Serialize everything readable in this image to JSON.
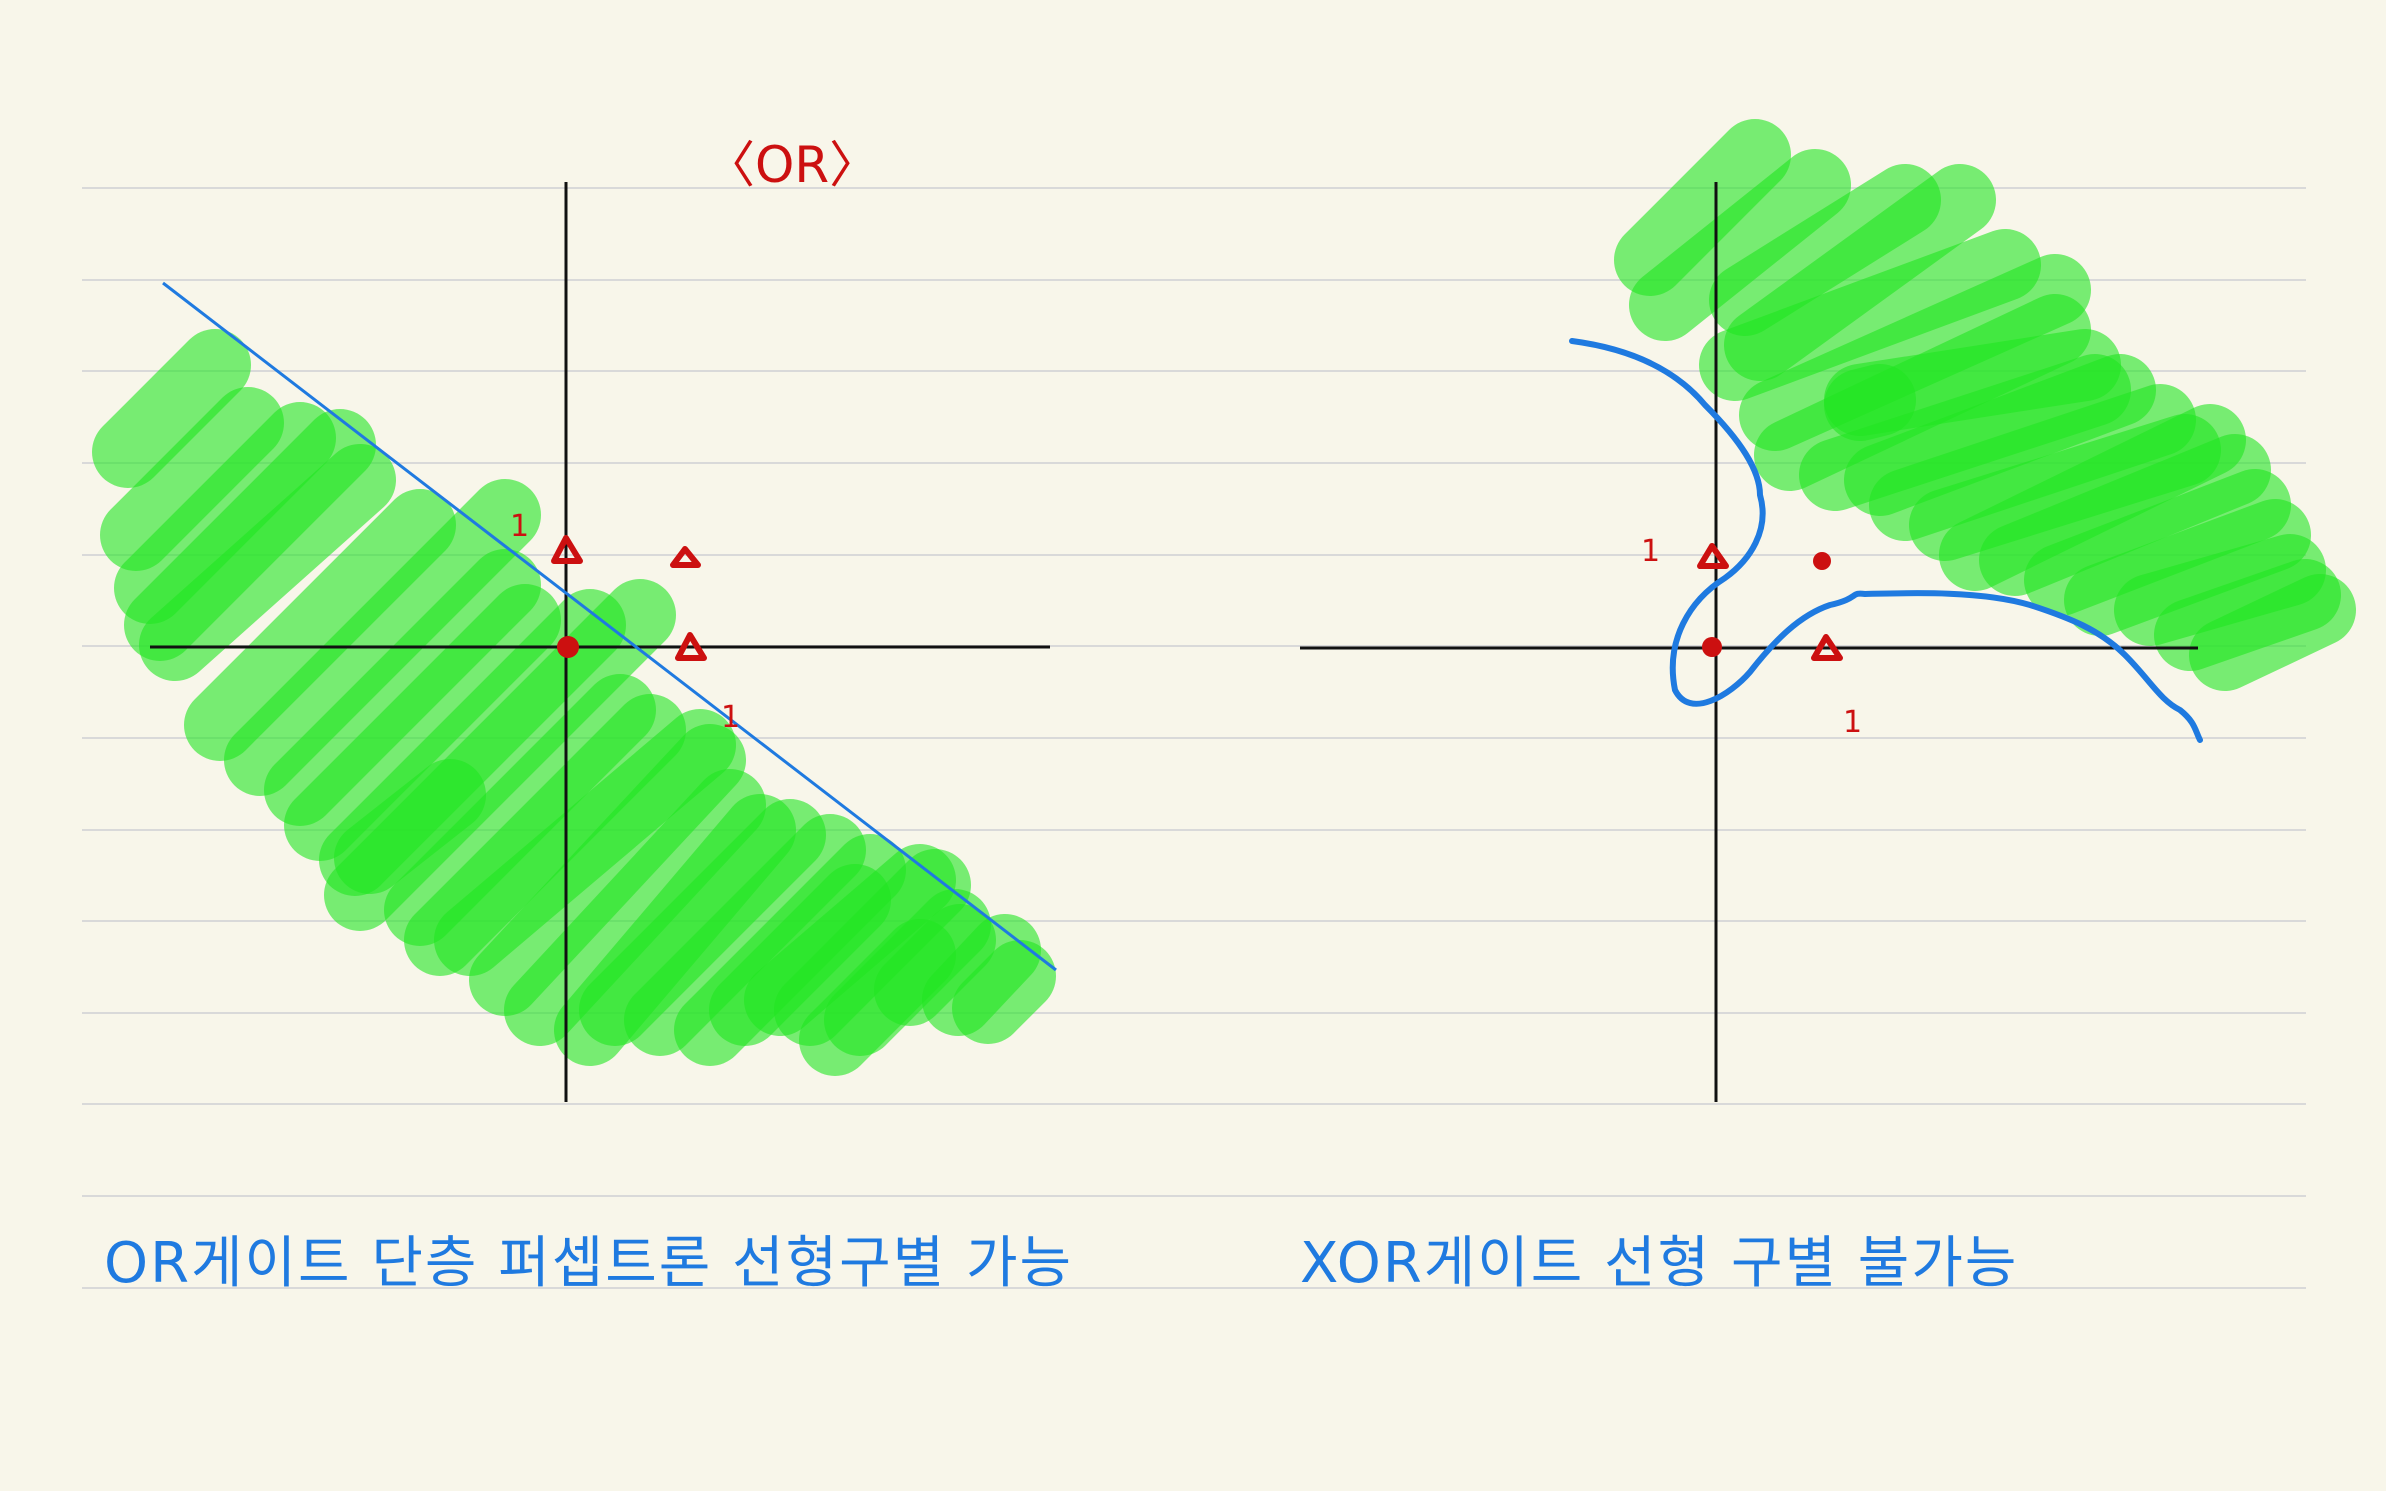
{
  "page": {
    "background": "#f8f6ea",
    "rule_color": "#d9d9d9",
    "axis_color": "#111111",
    "highlight_color": "#22e622",
    "marker_color": "#cc1010",
    "ink_color": "#1f7ae0"
  },
  "left_panel": {
    "title": "〈OR〉",
    "y_tick": "1",
    "x_tick": "1",
    "points": [
      {
        "x": 0,
        "y": 0,
        "marker": "dot"
      },
      {
        "x": 0,
        "y": 1,
        "marker": "triangle"
      },
      {
        "x": 1,
        "y": 0,
        "marker": "triangle"
      },
      {
        "x": 1,
        "y": 1,
        "marker": "triangle"
      }
    ],
    "separator": "linear",
    "caption": "OR게이트 단층 퍼셉트론 선형구별 가능"
  },
  "right_panel": {
    "y_tick": "1",
    "x_tick": "1",
    "points": [
      {
        "x": 0,
        "y": 0,
        "marker": "dot"
      },
      {
        "x": 0,
        "y": 1,
        "marker": "triangle"
      },
      {
        "x": 1,
        "y": 0,
        "marker": "triangle"
      },
      {
        "x": 1,
        "y": 1,
        "marker": "dot"
      }
    ],
    "separator": "curve",
    "caption": "XOR게이트 선형 구별 불가능"
  }
}
